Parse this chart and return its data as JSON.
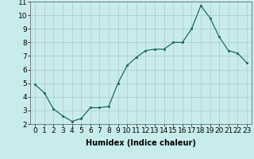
{
  "x": [
    0,
    1,
    2,
    3,
    4,
    5,
    6,
    7,
    8,
    9,
    10,
    11,
    12,
    13,
    14,
    15,
    16,
    17,
    18,
    19,
    20,
    21,
    22,
    23
  ],
  "y": [
    4.9,
    4.3,
    3.1,
    2.6,
    2.2,
    2.4,
    3.2,
    3.2,
    3.3,
    5.0,
    6.3,
    6.9,
    7.4,
    7.5,
    7.5,
    8.0,
    8.0,
    9.0,
    10.7,
    9.8,
    8.4,
    7.4,
    7.2,
    6.5
  ],
  "xlabel": "Humidex (Indice chaleur)",
  "ylim": [
    2,
    11
  ],
  "xlim": [
    -0.5,
    23.5
  ],
  "yticks": [
    2,
    3,
    4,
    5,
    6,
    7,
    8,
    9,
    10,
    11
  ],
  "xticks": [
    0,
    1,
    2,
    3,
    4,
    5,
    6,
    7,
    8,
    9,
    10,
    11,
    12,
    13,
    14,
    15,
    16,
    17,
    18,
    19,
    20,
    21,
    22,
    23
  ],
  "line_color": "#1a6b5a",
  "marker_color": "#1a6b5a",
  "bg_color": "#c8ecec",
  "grid_color": "#b0c8c8",
  "axes_bg": "#c8ecec",
  "xlabel_fontsize": 7,
  "tick_fontsize": 6.5
}
